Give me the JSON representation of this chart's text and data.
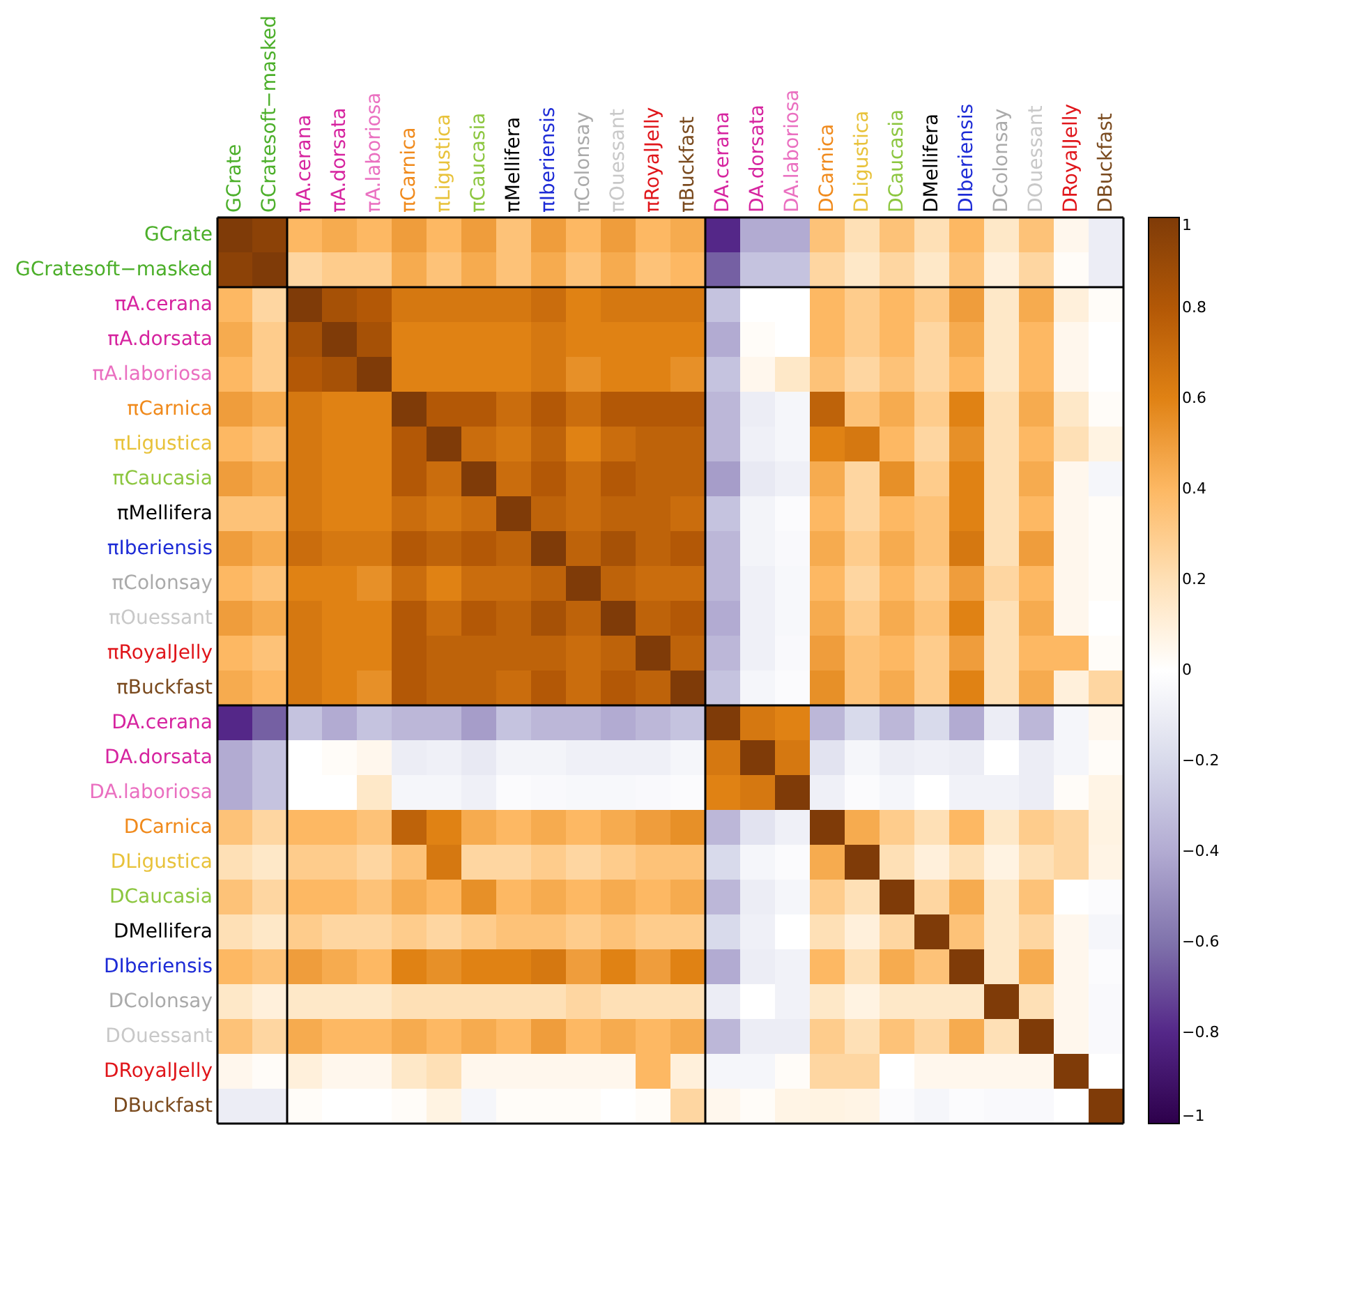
{
  "chart_data": {
    "type": "heatmap",
    "categories": [
      "GCrate",
      "GCratesoft−masked",
      "πA.cerana",
      "πA.dorsata",
      "πA.laboriosa",
      "πCarnica",
      "πLigustica",
      "πCaucasia",
      "πMellifera",
      "πIberiensis",
      "πColonsay",
      "πOuessant",
      "πRoyalJelly",
      "πBuckfast",
      "DA.cerana",
      "DA.dorsata",
      "DA.laboriosa",
      "DCarnica",
      "DLigustica",
      "DCaucasia",
      "DMellifera",
      "DIberiensis",
      "DColonsay",
      "DOuessant",
      "DRoyalJelly",
      "DBuckfast"
    ],
    "y_categories": [
      "GCrate",
      "GCratesoft−masked",
      "πA.cerana",
      "πA.dorsata",
      "πA.laboriosa",
      "πCarnica",
      "πLigustica",
      "πCaucasia",
      "πMellifera",
      "πIberiensis",
      "πColonsay",
      "πOuessant",
      "πRoyalJelly",
      "πBuckfast",
      "DA.cerana",
      "DA.dorsata",
      "DA.laboriosa",
      "DCarnica",
      "DLigustica",
      "DCaucasia",
      "DMellifera",
      "DIberiensis",
      "DColonsay",
      "DOuessant",
      "DRoyalJelly",
      "DBuckfast"
    ],
    "cells": [
      [
        1,
        0.95,
        0.4,
        0.45,
        0.4,
        0.5,
        0.4,
        0.5,
        0.35,
        0.5,
        0.4,
        0.5,
        0.4,
        0.45,
        -0.8,
        -0.4,
        -0.4,
        0.35,
        0.2,
        0.35,
        0.2,
        0.4,
        0.15,
        0.35,
        0.05,
        -0.1
      ],
      [
        0.95,
        1,
        0.25,
        0.3,
        0.3,
        0.45,
        0.35,
        0.45,
        0.35,
        0.45,
        0.35,
        0.45,
        0.35,
        0.4,
        -0.65,
        -0.3,
        -0.3,
        0.25,
        0.15,
        0.25,
        0.15,
        0.35,
        0.1,
        0.25,
        0.02,
        -0.1
      ],
      [
        0.4,
        0.25,
        1,
        0.85,
        0.8,
        0.65,
        0.65,
        0.65,
        0.65,
        0.7,
        0.6,
        0.65,
        0.65,
        0.65,
        -0.3,
        0.0,
        0.0,
        0.4,
        0.3,
        0.4,
        0.3,
        0.5,
        0.15,
        0.45,
        0.1,
        0.02
      ],
      [
        0.45,
        0.3,
        0.85,
        1,
        0.85,
        0.6,
        0.6,
        0.6,
        0.6,
        0.65,
        0.6,
        0.6,
        0.6,
        0.6,
        -0.4,
        0.02,
        0.0,
        0.4,
        0.3,
        0.4,
        0.25,
        0.45,
        0.15,
        0.4,
        0.05,
        0.0
      ],
      [
        0.4,
        0.3,
        0.8,
        0.85,
        1,
        0.6,
        0.6,
        0.6,
        0.6,
        0.65,
        0.55,
        0.6,
        0.6,
        0.55,
        -0.3,
        0.05,
        0.15,
        0.35,
        0.25,
        0.35,
        0.25,
        0.4,
        0.15,
        0.4,
        0.05,
        0.0
      ],
      [
        0.5,
        0.45,
        0.65,
        0.6,
        0.6,
        1,
        0.8,
        0.8,
        0.7,
        0.8,
        0.7,
        0.8,
        0.8,
        0.8,
        -0.35,
        -0.1,
        -0.05,
        0.75,
        0.35,
        0.45,
        0.3,
        0.6,
        0.2,
        0.45,
        0.15,
        0.02
      ],
      [
        0.4,
        0.35,
        0.65,
        0.6,
        0.6,
        0.8,
        1,
        0.7,
        0.65,
        0.75,
        0.6,
        0.7,
        0.75,
        0.75,
        -0.35,
        -0.08,
        -0.05,
        0.6,
        0.65,
        0.4,
        0.25,
        0.55,
        0.2,
        0.4,
        0.2,
        0.08
      ],
      [
        0.5,
        0.45,
        0.65,
        0.6,
        0.6,
        0.8,
        0.7,
        1,
        0.7,
        0.8,
        0.7,
        0.8,
        0.75,
        0.75,
        -0.45,
        -0.12,
        -0.08,
        0.45,
        0.25,
        0.55,
        0.3,
        0.6,
        0.2,
        0.45,
        0.05,
        -0.05
      ],
      [
        0.35,
        0.35,
        0.65,
        0.6,
        0.6,
        0.7,
        0.65,
        0.7,
        1,
        0.75,
        0.7,
        0.75,
        0.75,
        0.7,
        -0.3,
        -0.06,
        -0.02,
        0.4,
        0.25,
        0.4,
        0.35,
        0.6,
        0.2,
        0.4,
        0.05,
        0.02
      ],
      [
        0.5,
        0.45,
        0.7,
        0.65,
        0.65,
        0.8,
        0.75,
        0.8,
        0.75,
        1,
        0.75,
        0.85,
        0.75,
        0.8,
        -0.35,
        -0.06,
        -0.03,
        0.45,
        0.3,
        0.45,
        0.35,
        0.65,
        0.2,
        0.5,
        0.05,
        0.02
      ],
      [
        0.4,
        0.35,
        0.6,
        0.6,
        0.55,
        0.7,
        0.6,
        0.7,
        0.7,
        0.75,
        1,
        0.75,
        0.7,
        0.7,
        -0.35,
        -0.08,
        -0.04,
        0.4,
        0.25,
        0.4,
        0.3,
        0.5,
        0.25,
        0.4,
        0.05,
        0.02
      ],
      [
        0.5,
        0.45,
        0.65,
        0.6,
        0.6,
        0.8,
        0.7,
        0.8,
        0.75,
        0.85,
        0.75,
        1,
        0.75,
        0.8,
        -0.4,
        -0.08,
        -0.04,
        0.45,
        0.3,
        0.45,
        0.35,
        0.6,
        0.2,
        0.45,
        0.05,
        0.0
      ],
      [
        0.4,
        0.35,
        0.65,
        0.6,
        0.6,
        0.8,
        0.75,
        0.75,
        0.75,
        0.75,
        0.7,
        0.75,
        1,
        0.75,
        -0.35,
        -0.08,
        -0.03,
        0.5,
        0.35,
        0.4,
        0.3,
        0.5,
        0.2,
        0.4,
        0.4,
        0.02
      ],
      [
        0.45,
        0.4,
        0.65,
        0.6,
        0.55,
        0.8,
        0.75,
        0.75,
        0.7,
        0.8,
        0.7,
        0.8,
        0.75,
        1,
        -0.3,
        -0.05,
        -0.02,
        0.55,
        0.35,
        0.45,
        0.3,
        0.6,
        0.2,
        0.45,
        0.1,
        0.25
      ],
      [
        -0.8,
        -0.65,
        -0.3,
        -0.4,
        -0.3,
        -0.35,
        -0.35,
        -0.45,
        -0.3,
        -0.35,
        -0.35,
        -0.4,
        -0.35,
        -0.3,
        1,
        0.65,
        0.6,
        -0.35,
        -0.2,
        -0.35,
        -0.2,
        -0.4,
        -0.1,
        -0.35,
        -0.05,
        0.05
      ],
      [
        -0.4,
        -0.3,
        0.0,
        0.02,
        0.05,
        -0.1,
        -0.08,
        -0.12,
        -0.06,
        -0.06,
        -0.08,
        -0.08,
        -0.08,
        -0.05,
        0.65,
        1,
        0.65,
        -0.15,
        -0.05,
        -0.1,
        -0.08,
        -0.1,
        0.0,
        -0.1,
        -0.05,
        0.02
      ],
      [
        -0.4,
        -0.3,
        0.0,
        0.0,
        0.15,
        -0.05,
        -0.05,
        -0.08,
        -0.02,
        -0.03,
        -0.04,
        -0.04,
        -0.03,
        -0.02,
        0.6,
        0.65,
        1,
        -0.08,
        -0.02,
        -0.05,
        0.0,
        -0.07,
        -0.07,
        -0.1,
        0.02,
        0.07
      ],
      [
        0.35,
        0.25,
        0.4,
        0.4,
        0.35,
        0.75,
        0.6,
        0.45,
        0.4,
        0.45,
        0.4,
        0.45,
        0.5,
        0.55,
        -0.35,
        -0.15,
        -0.08,
        1,
        0.45,
        0.3,
        0.2,
        0.4,
        0.15,
        0.3,
        0.25,
        0.08
      ],
      [
        0.2,
        0.15,
        0.3,
        0.3,
        0.25,
        0.35,
        0.65,
        0.25,
        0.25,
        0.3,
        0.25,
        0.3,
        0.35,
        0.35,
        -0.2,
        -0.05,
        -0.02,
        0.45,
        1,
        0.2,
        0.1,
        0.2,
        0.08,
        0.2,
        0.25,
        0.07
      ],
      [
        0.35,
        0.25,
        0.4,
        0.4,
        0.35,
        0.45,
        0.4,
        0.55,
        0.4,
        0.45,
        0.4,
        0.45,
        0.4,
        0.45,
        -0.35,
        -0.1,
        -0.05,
        0.3,
        0.2,
        1,
        0.25,
        0.45,
        0.15,
        0.35,
        0.0,
        -0.02
      ],
      [
        0.2,
        0.15,
        0.3,
        0.25,
        0.25,
        0.3,
        0.25,
        0.3,
        0.35,
        0.35,
        0.3,
        0.35,
        0.3,
        0.3,
        -0.2,
        -0.08,
        0.0,
        0.2,
        0.1,
        0.25,
        1,
        0.35,
        0.15,
        0.25,
        0.05,
        -0.05
      ],
      [
        0.4,
        0.35,
        0.5,
        0.45,
        0.4,
        0.6,
        0.55,
        0.6,
        0.6,
        0.65,
        0.5,
        0.6,
        0.5,
        0.6,
        -0.4,
        -0.1,
        -0.07,
        0.4,
        0.2,
        0.45,
        0.35,
        1,
        0.15,
        0.45,
        0.05,
        -0.02
      ],
      [
        0.15,
        0.1,
        0.15,
        0.15,
        0.15,
        0.2,
        0.2,
        0.2,
        0.2,
        0.2,
        0.25,
        0.2,
        0.2,
        0.2,
        -0.1,
        0.0,
        -0.07,
        0.15,
        0.08,
        0.15,
        0.15,
        0.15,
        1,
        0.2,
        0.05,
        -0.03
      ],
      [
        0.35,
        0.25,
        0.45,
        0.4,
        0.4,
        0.45,
        0.4,
        0.45,
        0.4,
        0.5,
        0.4,
        0.45,
        0.4,
        0.45,
        -0.35,
        -0.1,
        -0.1,
        0.3,
        0.2,
        0.35,
        0.25,
        0.45,
        0.2,
        1,
        0.05,
        -0.03
      ],
      [
        0.05,
        0.02,
        0.1,
        0.05,
        0.05,
        0.15,
        0.2,
        0.05,
        0.05,
        0.05,
        0.05,
        0.05,
        0.4,
        0.1,
        -0.05,
        -0.05,
        0.02,
        0.25,
        0.25,
        0.0,
        0.05,
        0.05,
        0.05,
        0.05,
        1,
        0.0
      ],
      [
        -0.1,
        -0.1,
        0.02,
        0.0,
        0.0,
        0.02,
        0.08,
        -0.05,
        0.02,
        0.02,
        0.02,
        0.0,
        0.02,
        0.25,
        0.05,
        0.02,
        0.07,
        0.08,
        0.07,
        -0.02,
        -0.05,
        -0.02,
        -0.03,
        -0.03,
        0.0,
        1
      ]
    ],
    "clim": [
      -1,
      1
    ],
    "cticks": [
      1,
      0.8,
      0.6,
      0.4,
      0.2,
      0,
      -0.2,
      -0.4,
      -0.6,
      -0.8,
      -1
    ]
  }
}
